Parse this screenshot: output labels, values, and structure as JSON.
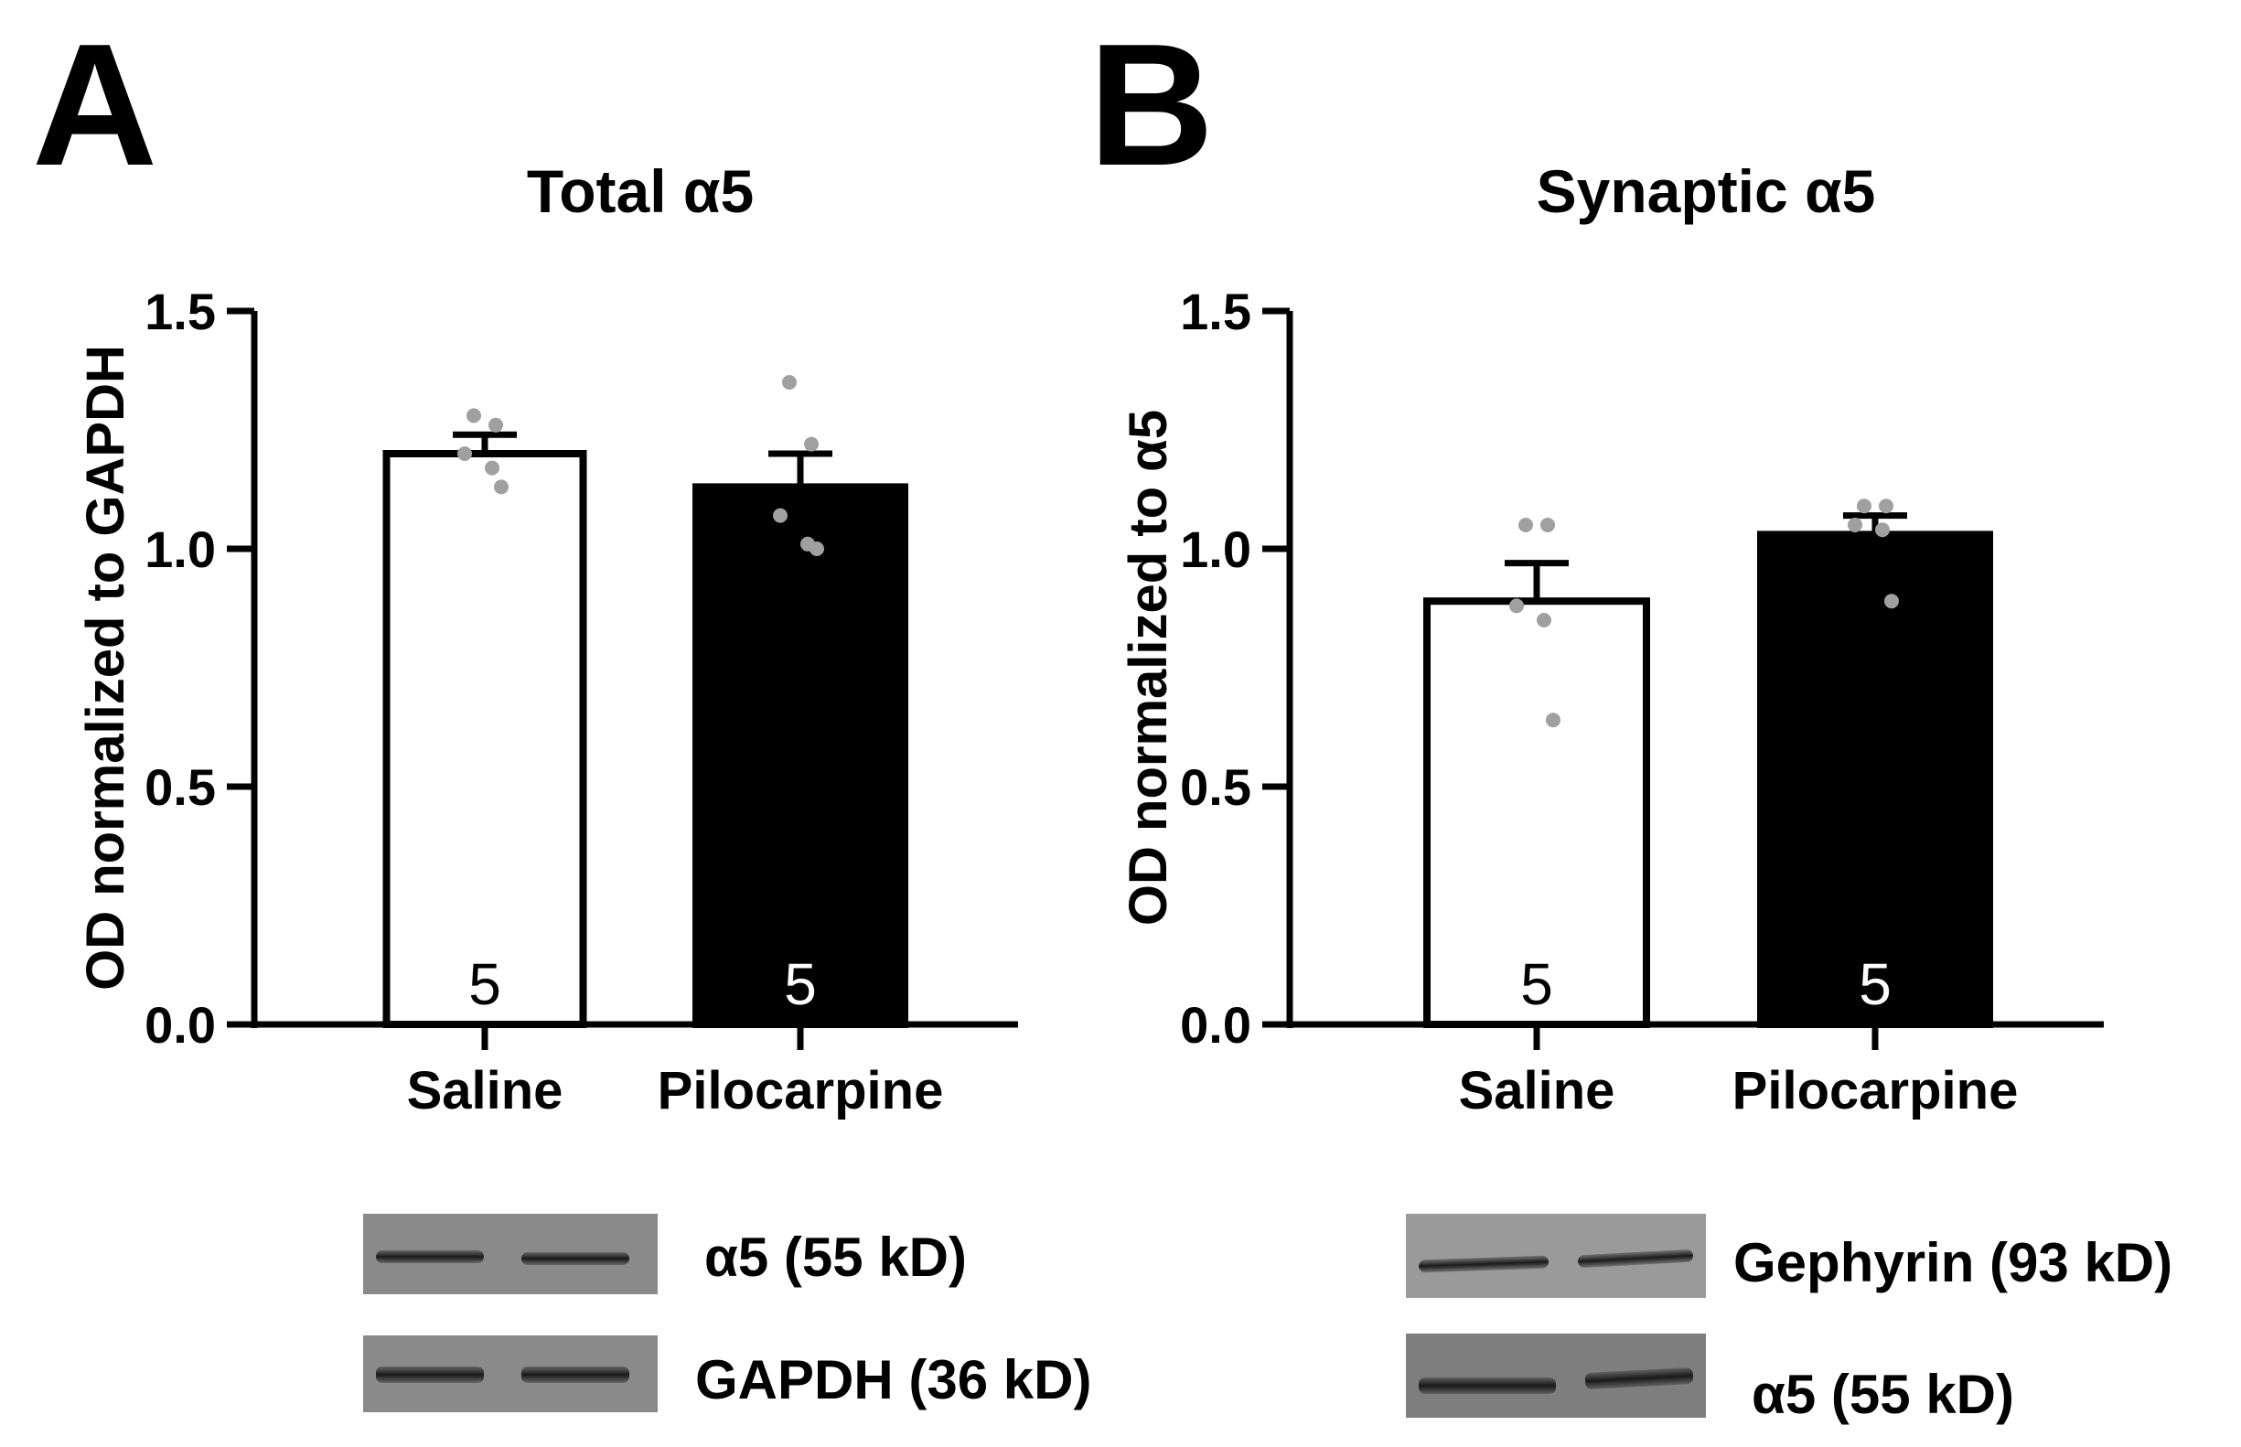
{
  "chart_data": [
    {
      "type": "bar",
      "panel_letter": "A",
      "title": "Total α5",
      "ylabel": "OD normalized to GAPDH",
      "xlabel": "",
      "ylim": [
        0,
        1.5
      ],
      "yticks": [
        "0.0",
        "0.5",
        "1.0",
        "1.5"
      ],
      "categories": [
        "Saline",
        "Pilocarpine"
      ],
      "values": [
        1.2,
        1.13
      ],
      "errors": [
        0.04,
        0.07
      ],
      "n_labels": [
        "5",
        "5"
      ],
      "bar_fill": [
        "#ffffff",
        "#000000"
      ],
      "points": [
        [
          1.28,
          1.26,
          1.2,
          1.17,
          1.13
        ],
        [
          1.35,
          1.22,
          1.07,
          1.01,
          1.0
        ]
      ],
      "grid": false
    },
    {
      "type": "bar",
      "panel_letter": "B",
      "title": "Synaptic α5",
      "ylabel": "OD normalized to α5",
      "xlabel": "",
      "ylim": [
        0,
        1.5
      ],
      "yticks": [
        "0.0",
        "0.5",
        "1.0",
        "1.5"
      ],
      "categories": [
        "Saline",
        "Pilocarpine"
      ],
      "values": [
        0.89,
        1.03
      ],
      "errors": [
        0.08,
        0.04
      ],
      "n_labels": [
        "5",
        "5"
      ],
      "bar_fill": [
        "#ffffff",
        "#000000"
      ],
      "points": [
        [
          1.05,
          1.05,
          0.88,
          0.85,
          0.64
        ],
        [
          1.09,
          1.09,
          1.05,
          1.04,
          0.89
        ]
      ],
      "grid": false
    }
  ],
  "blots": {
    "A": [
      {
        "label": "α5 (55 kD)"
      },
      {
        "label": "GAPDH (36 kD)"
      }
    ],
    "B": [
      {
        "label": "Gephyrin (93 kD)"
      },
      {
        "label": "α5 (55 kD)"
      }
    ]
  },
  "colors": {
    "points": "#a0a0a0",
    "axis": "#000000",
    "blot_bg": "#8a8a8a"
  }
}
